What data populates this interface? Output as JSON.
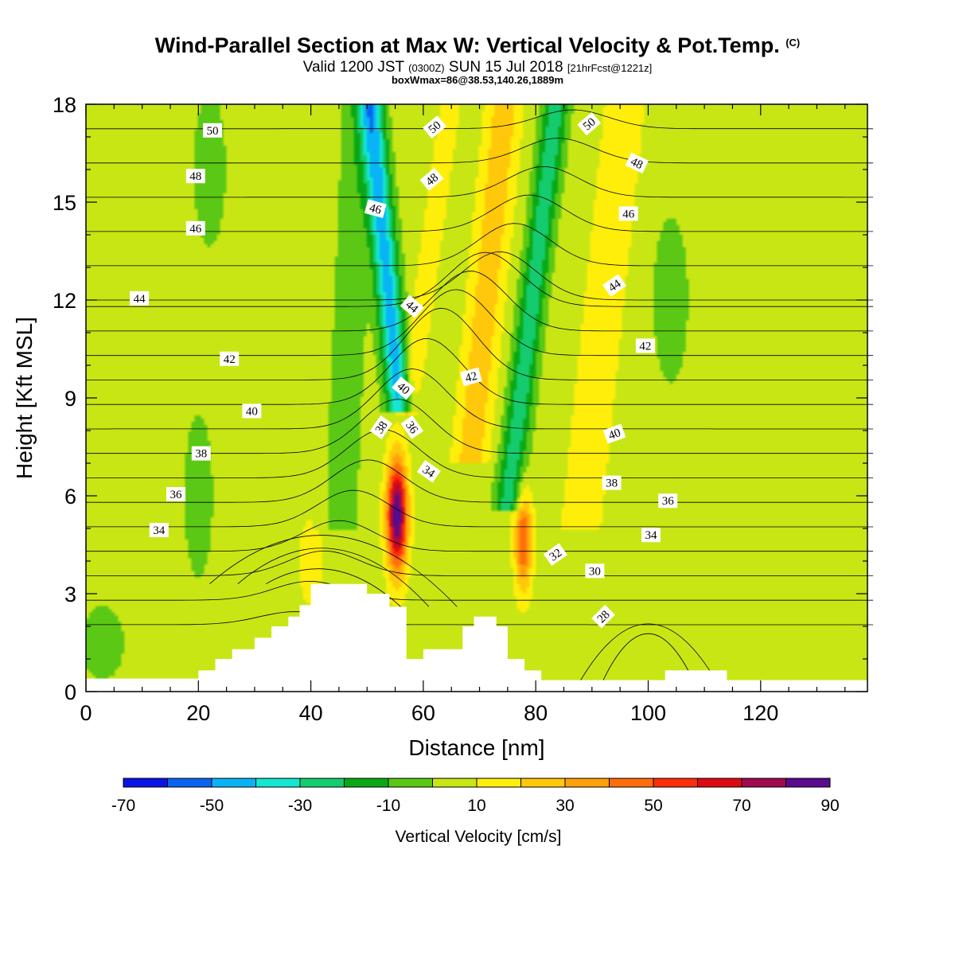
{
  "header": {
    "title": "Wind-Parallel Section at Max W: Vertical Velocity & Pot.Temp.",
    "copyright": "(C)",
    "valid_prefix": "Valid 1200 JST",
    "valid_utc": "(0300Z)",
    "valid_date": "SUN 15 Jul 2018",
    "forecast": "[21hrFcst@1221z]",
    "boxwmax": "boxWmax=86@38.53,140.26,1889m"
  },
  "chart_data": {
    "type": "heatmap",
    "xlabel": "Distance [nm]",
    "ylabel": "Height [Kft MSL]",
    "xlim": [
      0,
      139
    ],
    "ylim": [
      0,
      18
    ],
    "x_ticks": [
      0,
      20,
      40,
      60,
      80,
      100,
      120
    ],
    "y_ticks": [
      0,
      3,
      6,
      9,
      12,
      15,
      18
    ],
    "colorbar": {
      "title": "Vertical Velocity [cm/s]",
      "levels": [
        -70,
        -60,
        -50,
        -40,
        -30,
        -20,
        -10,
        0,
        10,
        20,
        30,
        40,
        50,
        60,
        70,
        80,
        90
      ],
      "tick_labels": [
        "-70",
        "-50",
        "-30",
        "-10",
        "10",
        "30",
        "50",
        "70",
        "90"
      ],
      "colors": [
        "#0a14e6",
        "#0a64f0",
        "#08b4f5",
        "#14e6d2",
        "#14cc6e",
        "#0aa814",
        "#5ac814",
        "#c8e614",
        "#ffee0a",
        "#ffc80a",
        "#ffa00a",
        "#ff6e0a",
        "#ff2d0a",
        "#dc0a14",
        "#a00a50",
        "#5a0a8c"
      ]
    },
    "background_value_cm_s": 5,
    "features": [
      {
        "name": "updraft-main",
        "x": 55.3,
        "y": 5.5,
        "max_cm_s": 86
      },
      {
        "name": "updraft-secondary",
        "x": 77.8,
        "y": 4.8,
        "max_cm_s": 50
      },
      {
        "name": "downdraft-upper",
        "x": 54.5,
        "y": 14.5,
        "min_cm_s": -52
      },
      {
        "name": "downdraft-band",
        "x": 80,
        "y": 13,
        "min_cm_s": -35
      }
    ],
    "terrain_kft": {
      "x": [
        0,
        19.5,
        20,
        22,
        23,
        25,
        26,
        29,
        30,
        32,
        33,
        35,
        36,
        37,
        38,
        39,
        40,
        49,
        50,
        53,
        54,
        55,
        56,
        57,
        58,
        59,
        60,
        61,
        62,
        63,
        64,
        65,
        66,
        67,
        68,
        69,
        70,
        72,
        73,
        74,
        75,
        76,
        77,
        78,
        79,
        80,
        81,
        82,
        83,
        84,
        85,
        90,
        100,
        103,
        104,
        105,
        106,
        107,
        108,
        110,
        112,
        113,
        114,
        115,
        139
      ],
      "heights": [
        0.4,
        0.4,
        0.65,
        0.65,
        1.0,
        1.0,
        1.3,
        1.3,
        1.65,
        1.65,
        2.0,
        2.0,
        2.3,
        2.3,
        2.65,
        2.65,
        3.3,
        3.3,
        3.0,
        3.0,
        2.6,
        2.6,
        2.6,
        1.0,
        1.0,
        1.0,
        1.3,
        1.3,
        1.3,
        1.3,
        1.3,
        1.3,
        1.3,
        2.0,
        2.0,
        2.3,
        2.3,
        2.3,
        2.0,
        2.0,
        1.0,
        1.0,
        1.0,
        0.65,
        0.65,
        0.65,
        0.35,
        0.35,
        0.35,
        0.35,
        0.35,
        0.35,
        0.35,
        0.65,
        0.65,
        0.65,
        0.65,
        0.65,
        0.65,
        0.65,
        0.65,
        0.65,
        0.35,
        0.35,
        0.35
      ]
    },
    "theta_contours_c": [
      28,
      30,
      32,
      34,
      36,
      38,
      40,
      42,
      44,
      46,
      48,
      50
    ],
    "theta_labels": [
      {
        "text": "50",
        "x": 22.5,
        "y": 17.2,
        "angle": 0
      },
      {
        "text": "48",
        "x": 19.5,
        "y": 15.8,
        "angle": 0
      },
      {
        "text": "46",
        "x": 19.5,
        "y": 14.2,
        "angle": 0
      },
      {
        "text": "44",
        "x": 9.5,
        "y": 12.05,
        "angle": 0
      },
      {
        "text": "42",
        "x": 25.5,
        "y": 10.2,
        "angle": 0
      },
      {
        "text": "40",
        "x": 29.5,
        "y": 8.6,
        "angle": 0
      },
      {
        "text": "38",
        "x": 20.5,
        "y": 7.3,
        "angle": 0
      },
      {
        "text": "36",
        "x": 16.0,
        "y": 6.05,
        "angle": 0
      },
      {
        "text": "34",
        "x": 13.0,
        "y": 4.95,
        "angle": 0
      },
      {
        "text": "50",
        "x": 62.0,
        "y": 17.3,
        "angle": -40
      },
      {
        "text": "48",
        "x": 61.5,
        "y": 15.7,
        "angle": -40
      },
      {
        "text": "46",
        "x": 51.5,
        "y": 14.8,
        "angle": 15
      },
      {
        "text": "44",
        "x": 58.0,
        "y": 11.8,
        "angle": 40
      },
      {
        "text": "42",
        "x": 68.5,
        "y": 9.65,
        "angle": -15
      },
      {
        "text": "40",
        "x": 56.5,
        "y": 9.3,
        "angle": 40
      },
      {
        "text": "38",
        "x": 52.5,
        "y": 8.1,
        "angle": -55
      },
      {
        "text": "36",
        "x": 58.0,
        "y": 8.1,
        "angle": 55
      },
      {
        "text": "34",
        "x": 61.0,
        "y": 6.75,
        "angle": 35
      },
      {
        "text": "50",
        "x": 89.5,
        "y": 17.4,
        "angle": -40
      },
      {
        "text": "48",
        "x": 98.0,
        "y": 16.2,
        "angle": 25
      },
      {
        "text": "46",
        "x": 96.5,
        "y": 14.65,
        "angle": 0
      },
      {
        "text": "44",
        "x": 94.0,
        "y": 12.45,
        "angle": -35
      },
      {
        "text": "42",
        "x": 99.5,
        "y": 10.6,
        "angle": 0
      },
      {
        "text": "40",
        "x": 94.0,
        "y": 7.9,
        "angle": -20
      },
      {
        "text": "38",
        "x": 93.5,
        "y": 6.4,
        "angle": 0
      },
      {
        "text": "36",
        "x": 103.5,
        "y": 5.85,
        "angle": 0
      },
      {
        "text": "34",
        "x": 100.5,
        "y": 4.8,
        "angle": 0
      },
      {
        "text": "32",
        "x": 83.5,
        "y": 4.2,
        "angle": -35
      },
      {
        "text": "30",
        "x": 90.5,
        "y": 3.7,
        "angle": 0
      },
      {
        "text": "28",
        "x": 92.0,
        "y": 2.3,
        "angle": -45
      }
    ]
  }
}
